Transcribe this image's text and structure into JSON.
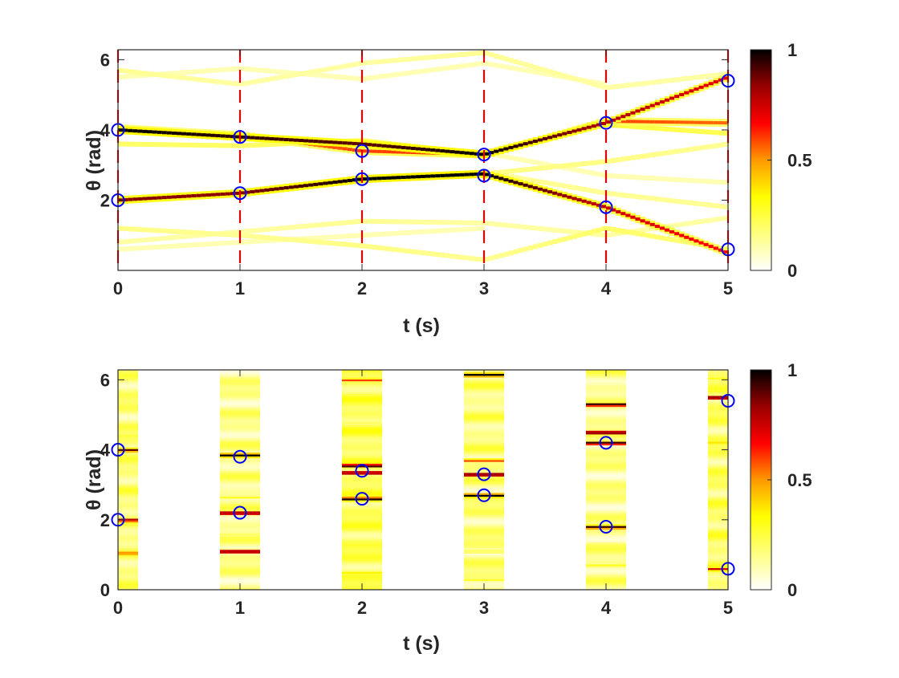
{
  "colors": {
    "dashed_line": "#e60000",
    "marker": "#0000ff",
    "axis": "#262626",
    "colormap": [
      "#ffffff",
      "#ffff80",
      "#ffff00",
      "#ff9900",
      "#ff0000",
      "#990000",
      "#000000"
    ]
  },
  "chart_data": [
    {
      "type": "heatmap",
      "subtype": "continuous-trajectory-likelihood",
      "xlabel": "t (s)",
      "ylabel": "θ (rad)",
      "xlim": [
        0,
        5
      ],
      "ylim": [
        0,
        6.283
      ],
      "xticks": [
        "0",
        "1",
        "2",
        "3",
        "4",
        "5"
      ],
      "yticks": [
        "2",
        "4",
        "6"
      ],
      "dashed_vertical_lines_at": [
        0,
        1,
        2,
        3,
        4,
        5
      ],
      "colorbar": {
        "range": [
          0,
          1
        ],
        "ticks": [
          "0",
          "0.5",
          "1"
        ]
      },
      "markers": {
        "name": "estimated targets",
        "points": [
          [
            0,
            4.0
          ],
          [
            0,
            2.0
          ],
          [
            1,
            3.8
          ],
          [
            1,
            2.2
          ],
          [
            2,
            3.4
          ],
          [
            2,
            2.6
          ],
          [
            3,
            3.3
          ],
          [
            3,
            2.7
          ],
          [
            4,
            4.2
          ],
          [
            4,
            1.8
          ],
          [
            5,
            5.4
          ],
          [
            5,
            0.6
          ]
        ]
      },
      "tracks": [
        {
          "name": "track-a",
          "points": [
            [
              0,
              4.0
            ],
            [
              1,
              3.8
            ],
            [
              2,
              3.6
            ],
            [
              3,
              3.3
            ],
            [
              4,
              4.2
            ],
            [
              5,
              5.5
            ]
          ],
          "values": [
            1.0,
            0.95,
            0.9,
            1.0,
            0.8,
            0.7
          ]
        },
        {
          "name": "track-b",
          "points": [
            [
              0,
              2.0
            ],
            [
              1,
              2.2
            ],
            [
              2,
              2.6
            ],
            [
              3,
              2.75
            ],
            [
              4,
              1.8
            ],
            [
              5,
              0.5
            ]
          ],
          "values": [
            0.85,
            0.85,
            1.0,
            1.0,
            0.75,
            0.65
          ]
        },
        {
          "name": "track-c",
          "points": [
            [
              0,
              4.05
            ],
            [
              1,
              3.85
            ],
            [
              2,
              3.4
            ],
            [
              3,
              3.3
            ]
          ],
          "values": [
            0.55,
            0.5,
            0.6,
            0.6
          ]
        },
        {
          "name": "track-d",
          "points": [
            [
              3,
              3.25
            ],
            [
              4,
              4.25
            ],
            [
              5,
              4.2
            ]
          ],
          "values": [
            0.4,
            0.6,
            0.55
          ]
        },
        {
          "name": "track-e",
          "points": [
            [
              0,
              3.6
            ],
            [
              1,
              3.55
            ],
            [
              2,
              3.7
            ],
            [
              3,
              3.3
            ]
          ],
          "values": [
            0.2,
            0.2,
            0.22,
            0.2
          ]
        },
        {
          "name": "track-f",
          "points": [
            [
              0,
              5.7
            ],
            [
              1,
              5.3
            ],
            [
              2,
              5.9
            ],
            [
              3,
              6.2
            ],
            [
              4,
              5.2
            ],
            [
              5,
              5.6
            ]
          ],
          "values": [
            0.14,
            0.12,
            0.12,
            0.14,
            0.12,
            0.12
          ]
        },
        {
          "name": "track-g",
          "points": [
            [
              0,
              5.5
            ],
            [
              1,
              5.75
            ],
            [
              2,
              5.45
            ],
            [
              3,
              5.9
            ],
            [
              4,
              5.3
            ]
          ],
          "values": [
            0.1,
            0.1,
            0.1,
            0.1,
            0.1
          ]
        },
        {
          "name": "track-h",
          "points": [
            [
              0,
              1.2
            ],
            [
              1,
              1.0
            ],
            [
              2,
              0.7
            ],
            [
              3,
              0.3
            ],
            [
              4,
              1.2
            ],
            [
              5,
              0.6
            ]
          ],
          "values": [
            0.16,
            0.14,
            0.16,
            0.14,
            0.2,
            0.18
          ]
        },
        {
          "name": "track-i",
          "points": [
            [
              0,
              0.8
            ],
            [
              1,
              1.1
            ],
            [
              2,
              1.4
            ],
            [
              3,
              1.35
            ],
            [
              4,
              1.0
            ],
            [
              5,
              1.5
            ]
          ],
          "values": [
            0.12,
            0.12,
            0.14,
            0.12,
            0.12,
            0.12
          ]
        },
        {
          "name": "track-j",
          "points": [
            [
              0,
              0.6
            ],
            [
              1,
              0.8
            ],
            [
              2,
              1.0
            ],
            [
              3,
              1.2
            ]
          ],
          "values": [
            0.1,
            0.1,
            0.1,
            0.1
          ]
        },
        {
          "name": "track-k",
          "points": [
            [
              3,
              2.75
            ],
            [
              4,
              3.1
            ],
            [
              5,
              3.6
            ]
          ],
          "values": [
            0.16,
            0.16,
            0.14
          ]
        },
        {
          "name": "track-l",
          "points": [
            [
              3,
              2.8
            ],
            [
              4,
              2.2
            ],
            [
              5,
              1.8
            ]
          ],
          "values": [
            0.14,
            0.14,
            0.14
          ]
        },
        {
          "name": "track-m",
          "points": [
            [
              3,
              3.35
            ],
            [
              4,
              2.7
            ],
            [
              5,
              2.5
            ]
          ],
          "values": [
            0.1,
            0.1,
            0.1
          ]
        },
        {
          "name": "track-n",
          "points": [
            [
              4,
              4.15
            ],
            [
              5,
              3.9
            ]
          ],
          "values": [
            0.25,
            0.22
          ]
        }
      ]
    },
    {
      "type": "heatmap",
      "subtype": "per-snapshot-spectrum",
      "xlabel": "t (s)",
      "ylabel": "θ (rad)",
      "xlim": [
        0,
        5
      ],
      "ylim": [
        0,
        6.283
      ],
      "xticks": [
        "0",
        "1",
        "2",
        "3",
        "4",
        "5"
      ],
      "yticks": [
        "0",
        "2",
        "4",
        "6"
      ],
      "column_half_width_t": 0.165,
      "colorbar": {
        "range": [
          0,
          1
        ],
        "ticks": [
          "0",
          "0.5",
          "1"
        ]
      },
      "markers": {
        "name": "estimated targets",
        "points": [
          [
            0,
            4.0
          ],
          [
            0,
            2.0
          ],
          [
            1,
            3.8
          ],
          [
            1,
            2.2
          ],
          [
            2,
            3.4
          ],
          [
            2,
            2.6
          ],
          [
            3,
            3.3
          ],
          [
            3,
            2.7
          ],
          [
            4,
            4.2
          ],
          [
            4,
            1.8
          ],
          [
            5,
            5.4
          ],
          [
            5,
            0.6
          ]
        ]
      },
      "columns": [
        {
          "t": 0,
          "base": 0.18,
          "peaks": [
            [
              4.0,
              0.9
            ],
            [
              2.0,
              0.85
            ],
            [
              1.05,
              0.6
            ],
            [
              4.4,
              0.3
            ],
            [
              0.3,
              0.2
            ]
          ]
        },
        {
          "t": 1,
          "base": 0.15,
          "peaks": [
            [
              3.85,
              1.0
            ],
            [
              2.2,
              0.95
            ],
            [
              1.1,
              0.95
            ],
            [
              2.65,
              0.3
            ],
            [
              3.3,
              0.25
            ],
            [
              1.6,
              0.2
            ]
          ]
        },
        {
          "t": 2,
          "base": 0.22,
          "peaks": [
            [
              3.55,
              1.0
            ],
            [
              3.35,
              0.95
            ],
            [
              2.6,
              1.0
            ],
            [
              6.0,
              0.6
            ],
            [
              1.3,
              0.3
            ],
            [
              0.5,
              0.35
            ],
            [
              4.8,
              0.2
            ]
          ]
        },
        {
          "t": 3,
          "base": 0.17,
          "peaks": [
            [
              3.3,
              1.0
            ],
            [
              2.7,
              1.0
            ],
            [
              6.15,
              1.0
            ],
            [
              3.7,
              0.6
            ],
            [
              1.1,
              0.25
            ],
            [
              0.3,
              0.3
            ],
            [
              5.0,
              0.2
            ]
          ]
        },
        {
          "t": 4,
          "base": 0.15,
          "peaks": [
            [
              5.3,
              1.0
            ],
            [
              4.5,
              1.0
            ],
            [
              4.2,
              1.0
            ],
            [
              1.8,
              0.95
            ],
            [
              0.7,
              0.3
            ],
            [
              1.3,
              0.25
            ],
            [
              3.0,
              0.2
            ]
          ]
        },
        {
          "t": 5,
          "base": 0.2,
          "peaks": [
            [
              5.5,
              1.0
            ],
            [
              0.6,
              0.75
            ],
            [
              4.2,
              0.4
            ],
            [
              6.05,
              0.3
            ],
            [
              2.5,
              0.2
            ]
          ]
        }
      ]
    }
  ]
}
